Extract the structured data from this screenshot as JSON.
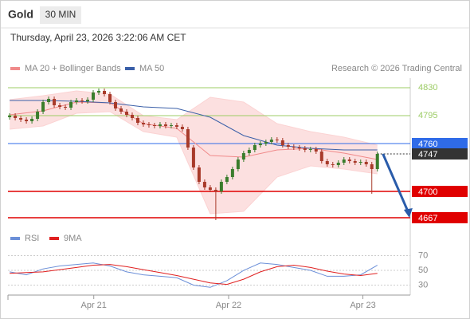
{
  "chart_data": {
    "type": "candlestick",
    "title": "Gold",
    "timeframe": "30 MIN",
    "subtitle": "Thursday, April 23, 2026 3:22:06 AM CET",
    "source": "Research © 2026 Trading Central",
    "xlim": [
      -0.3,
      71.9
    ],
    "xticks": [
      {
        "value": 15.1,
        "label": "Apr 21"
      },
      {
        "value": 39.3,
        "label": "Apr 22"
      },
      {
        "value": 63.4,
        "label": "Apr 23"
      }
    ],
    "ylim": [
      4658,
      4842
    ],
    "up_color": "#3a7d2c",
    "down_color": "#a83a2a",
    "candles": {
      "x": [
        0,
        1,
        2,
        3,
        4,
        5,
        6,
        7,
        8,
        9,
        10,
        11,
        12,
        13,
        14,
        15,
        16,
        17,
        18,
        19,
        20,
        21,
        22,
        23,
        24,
        25,
        26,
        27,
        28,
        29,
        30,
        31,
        32,
        33,
        34,
        35,
        36,
        37,
        38,
        39,
        40,
        41,
        42,
        43,
        44,
        45,
        46,
        47,
        48,
        49,
        50,
        51,
        52,
        53,
        54,
        55,
        56,
        57,
        58,
        59,
        60,
        61,
        62,
        63,
        64,
        65,
        66
      ],
      "open": [
        4793,
        4795,
        4792,
        4790,
        4788,
        4791,
        4800,
        4812,
        4816,
        4808,
        4806,
        4805,
        4812,
        4814,
        4813,
        4815,
        4824,
        4826,
        4822,
        4812,
        4804,
        4800,
        4796,
        4792,
        4786,
        4784,
        4783,
        4782,
        4784,
        4782,
        4783,
        4781,
        4778,
        4755,
        4730,
        4712,
        4705,
        4702,
        4700,
        4712,
        4718,
        4728,
        4740,
        4748,
        4752,
        4758,
        4760,
        4762,
        4765,
        4764,
        4758,
        4756,
        4755,
        4754,
        4752,
        4753,
        4750,
        4738,
        4734,
        4733,
        4736,
        4740,
        4738,
        4736,
        4737,
        4734,
        4728
      ],
      "high": [
        4798,
        4798,
        4795,
        4793,
        4794,
        4803,
        4815,
        4819,
        4819,
        4811,
        4809,
        4815,
        4817,
        4817,
        4818,
        4827,
        4829,
        4829,
        4825,
        4815,
        4807,
        4803,
        4799,
        4795,
        4789,
        4787,
        4786,
        4787,
        4787,
        4786,
        4786,
        4784,
        4781,
        4758,
        4733,
        4715,
        4708,
        4705,
        4715,
        4721,
        4731,
        4743,
        4751,
        4755,
        4761,
        4763,
        4765,
        4768,
        4768,
        4767,
        4761,
        4759,
        4758,
        4757,
        4756,
        4756,
        4753,
        4741,
        4737,
        4739,
        4743,
        4743,
        4741,
        4740,
        4740,
        4737,
        4750
      ],
      "low": [
        4790,
        4789,
        4787,
        4785,
        4785,
        4788,
        4797,
        4809,
        4805,
        4803,
        4802,
        4802,
        4809,
        4810,
        4810,
        4812,
        4821,
        4819,
        4809,
        4801,
        4797,
        4793,
        4789,
        4783,
        4781,
        4780,
        4779,
        4779,
        4779,
        4779,
        4778,
        4775,
        4752,
        4727,
        4709,
        4702,
        4699,
        4664,
        4697,
        4709,
        4715,
        4725,
        4737,
        4745,
        4749,
        4755,
        4757,
        4759,
        4761,
        4755,
        4753,
        4752,
        4751,
        4749,
        4749,
        4747,
        4735,
        4731,
        4730,
        4730,
        4733,
        4735,
        4733,
        4733,
        4731,
        4697,
        4725
      ],
      "close": [
        4795,
        4792,
        4790,
        4788,
        4791,
        4800,
        4812,
        4816,
        4808,
        4806,
        4805,
        4812,
        4814,
        4813,
        4815,
        4824,
        4826,
        4822,
        4812,
        4804,
        4800,
        4796,
        4792,
        4786,
        4784,
        4783,
        4782,
        4784,
        4782,
        4783,
        4781,
        4778,
        4755,
        4730,
        4712,
        4705,
        4702,
        4700,
        4712,
        4718,
        4728,
        4740,
        4748,
        4752,
        4758,
        4760,
        4762,
        4765,
        4764,
        4758,
        4756,
        4755,
        4754,
        4752,
        4753,
        4750,
        4738,
        4734,
        4733,
        4736,
        4740,
        4738,
        4736,
        4737,
        4734,
        4728,
        4747
      ]
    },
    "overlays": [
      {
        "name": "MA 20 + Bollinger Bands",
        "color": "#f08a8a",
        "band_color": "#fbd3d3",
        "x": [
          0,
          6,
          12,
          18,
          24,
          30,
          36,
          42,
          48,
          54,
          60,
          66
        ],
        "values": [
          4796,
          4801,
          4812,
          4811,
          4785,
          4779,
          4745,
          4743,
          4752,
          4754,
          4748,
          4740
        ],
        "upper": [
          4815,
          4820,
          4826,
          4822,
          4795,
          4790,
          4818,
          4812,
          4785,
          4775,
          4768,
          4758
        ],
        "lower": [
          4778,
          4782,
          4798,
          4800,
          4775,
          4768,
          4672,
          4675,
          4718,
          4732,
          4728,
          4722
        ]
      },
      {
        "name": "MA 50",
        "color": "#3a5fa8",
        "x": [
          0,
          6,
          12,
          18,
          24,
          30,
          36,
          42,
          48,
          54,
          60,
          66
        ],
        "values": [
          4814,
          4814,
          4813,
          4811,
          4806,
          4804,
          4793,
          4770,
          4758,
          4754,
          4752,
          4752
        ]
      }
    ],
    "levels": [
      {
        "value": 4830,
        "color": "#9ccc65",
        "boxed": false
      },
      {
        "value": 4795,
        "color": "#9ccc65",
        "boxed": false
      },
      {
        "value": 4760,
        "color": "#2f6be8",
        "boxed": true
      },
      {
        "value": 4747,
        "color": "#333333",
        "boxed": true,
        "dotted": true
      },
      {
        "value": 4700,
        "color": "#e00000",
        "boxed": true
      },
      {
        "value": 4667,
        "color": "#e00000",
        "boxed": true
      }
    ],
    "forecast": {
      "x": [
        67,
        71.6
      ],
      "values": [
        4747,
        4667
      ],
      "color": "#2a5caa"
    },
    "indicator": {
      "ylim": [
        16.5,
        81.4
      ],
      "yticks": [
        30,
        50,
        70
      ],
      "series": [
        {
          "name": "RSI",
          "color": "#6b8fd8",
          "x": [
            0,
            3,
            6,
            9,
            12,
            15,
            18,
            21,
            24,
            27,
            30,
            33,
            36,
            39,
            42,
            45,
            48,
            51,
            54,
            57,
            60,
            63,
            66
          ],
          "values": [
            48,
            44,
            52,
            56,
            58,
            60,
            56,
            48,
            44,
            42,
            40,
            30,
            27,
            36,
            50,
            60,
            58,
            54,
            50,
            42,
            42,
            44,
            57
          ]
        },
        {
          "name": "9MA",
          "color": "#e02020",
          "x": [
            0,
            3,
            6,
            9,
            12,
            15,
            18,
            21,
            24,
            27,
            30,
            33,
            36,
            39,
            42,
            45,
            48,
            51,
            54,
            57,
            60,
            63,
            66
          ],
          "values": [
            46,
            47,
            48,
            51,
            54,
            57,
            58,
            55,
            51,
            47,
            43,
            38,
            33,
            31,
            38,
            48,
            55,
            57,
            54,
            49,
            45,
            43,
            46
          ]
        }
      ]
    }
  }
}
